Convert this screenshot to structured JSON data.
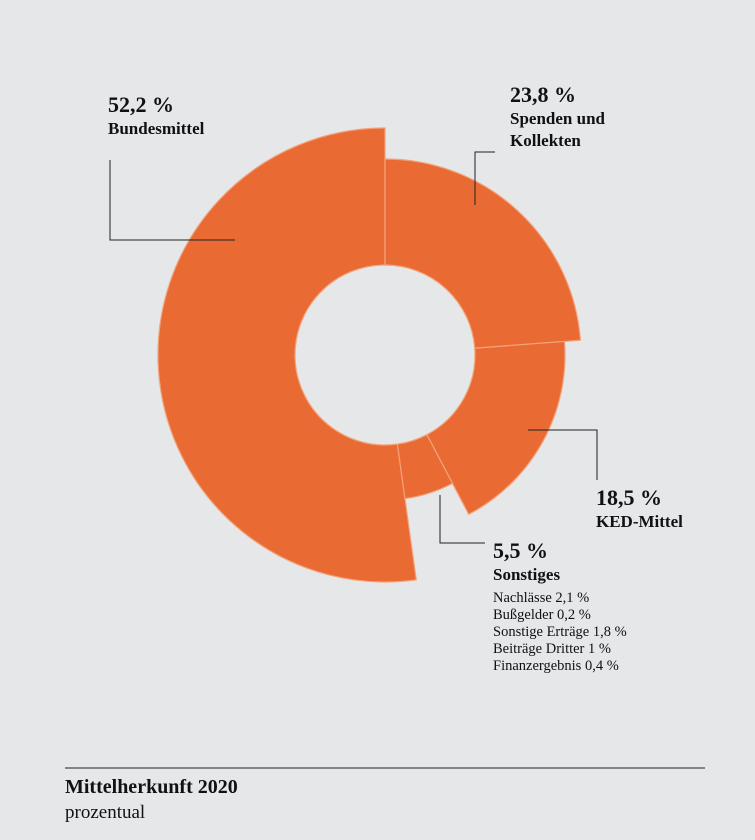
{
  "chart_data": {
    "type": "donut",
    "title": "Mittelherkunft 2020",
    "subtitle": "prozentual",
    "categories": [
      "Bundesmittel",
      "Spenden und Kollekten",
      "KED-Mittel",
      "Sonstiges"
    ],
    "values": [
      52.2,
      23.8,
      18.5,
      5.5
    ],
    "value_labels": [
      "52,2 %",
      "23,8 %",
      "18,5 %",
      "5,5 %"
    ],
    "color": "#e96b33",
    "details": [
      {
        "name": "Nachlässe",
        "value": 2.1,
        "label": "2,1 %"
      },
      {
        "name": "Bußgelder",
        "value": 0.2,
        "label": "0,2 %"
      },
      {
        "name": "Sonstige Erträge",
        "value": 1.8,
        "label": "1,8 %"
      },
      {
        "name": "Beiträge Dritter",
        "value": 1,
        "label": "1 %"
      },
      {
        "name": "Finanzergebnis",
        "value": 0.4,
        "label": "0,4 %"
      }
    ]
  }
}
